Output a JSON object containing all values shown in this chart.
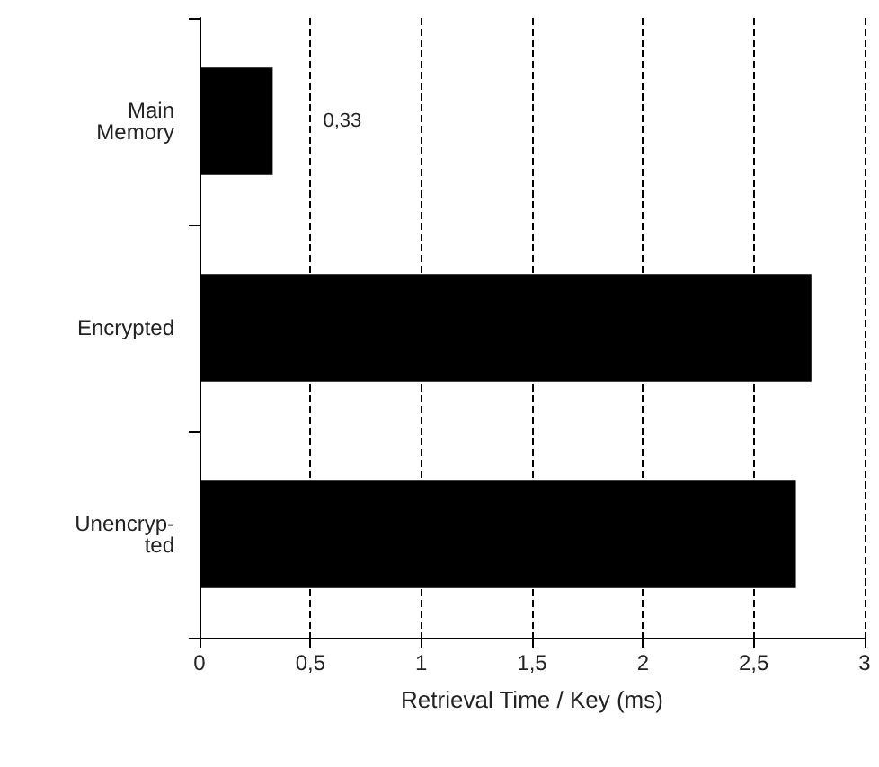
{
  "chart_data": {
    "type": "bar",
    "orientation": "horizontal",
    "categories": [
      "Main\nMemory",
      "Encrypted",
      "Unencryp-\nted"
    ],
    "values": [
      0.33,
      2.76,
      2.69
    ],
    "value_labels": [
      "0,33",
      null,
      null
    ],
    "color": "#000000",
    "xlabel": "Retrieval Time / Key (ms)",
    "xlim": [
      0,
      3
    ],
    "xticks": [
      0,
      {
        "value": 0.5,
        "label": "0,5"
      },
      1,
      {
        "value": 1.5,
        "label": "1,5"
      },
      2,
      {
        "value": 2.5,
        "label": "2,5"
      },
      3
    ],
    "grid": "x"
  }
}
